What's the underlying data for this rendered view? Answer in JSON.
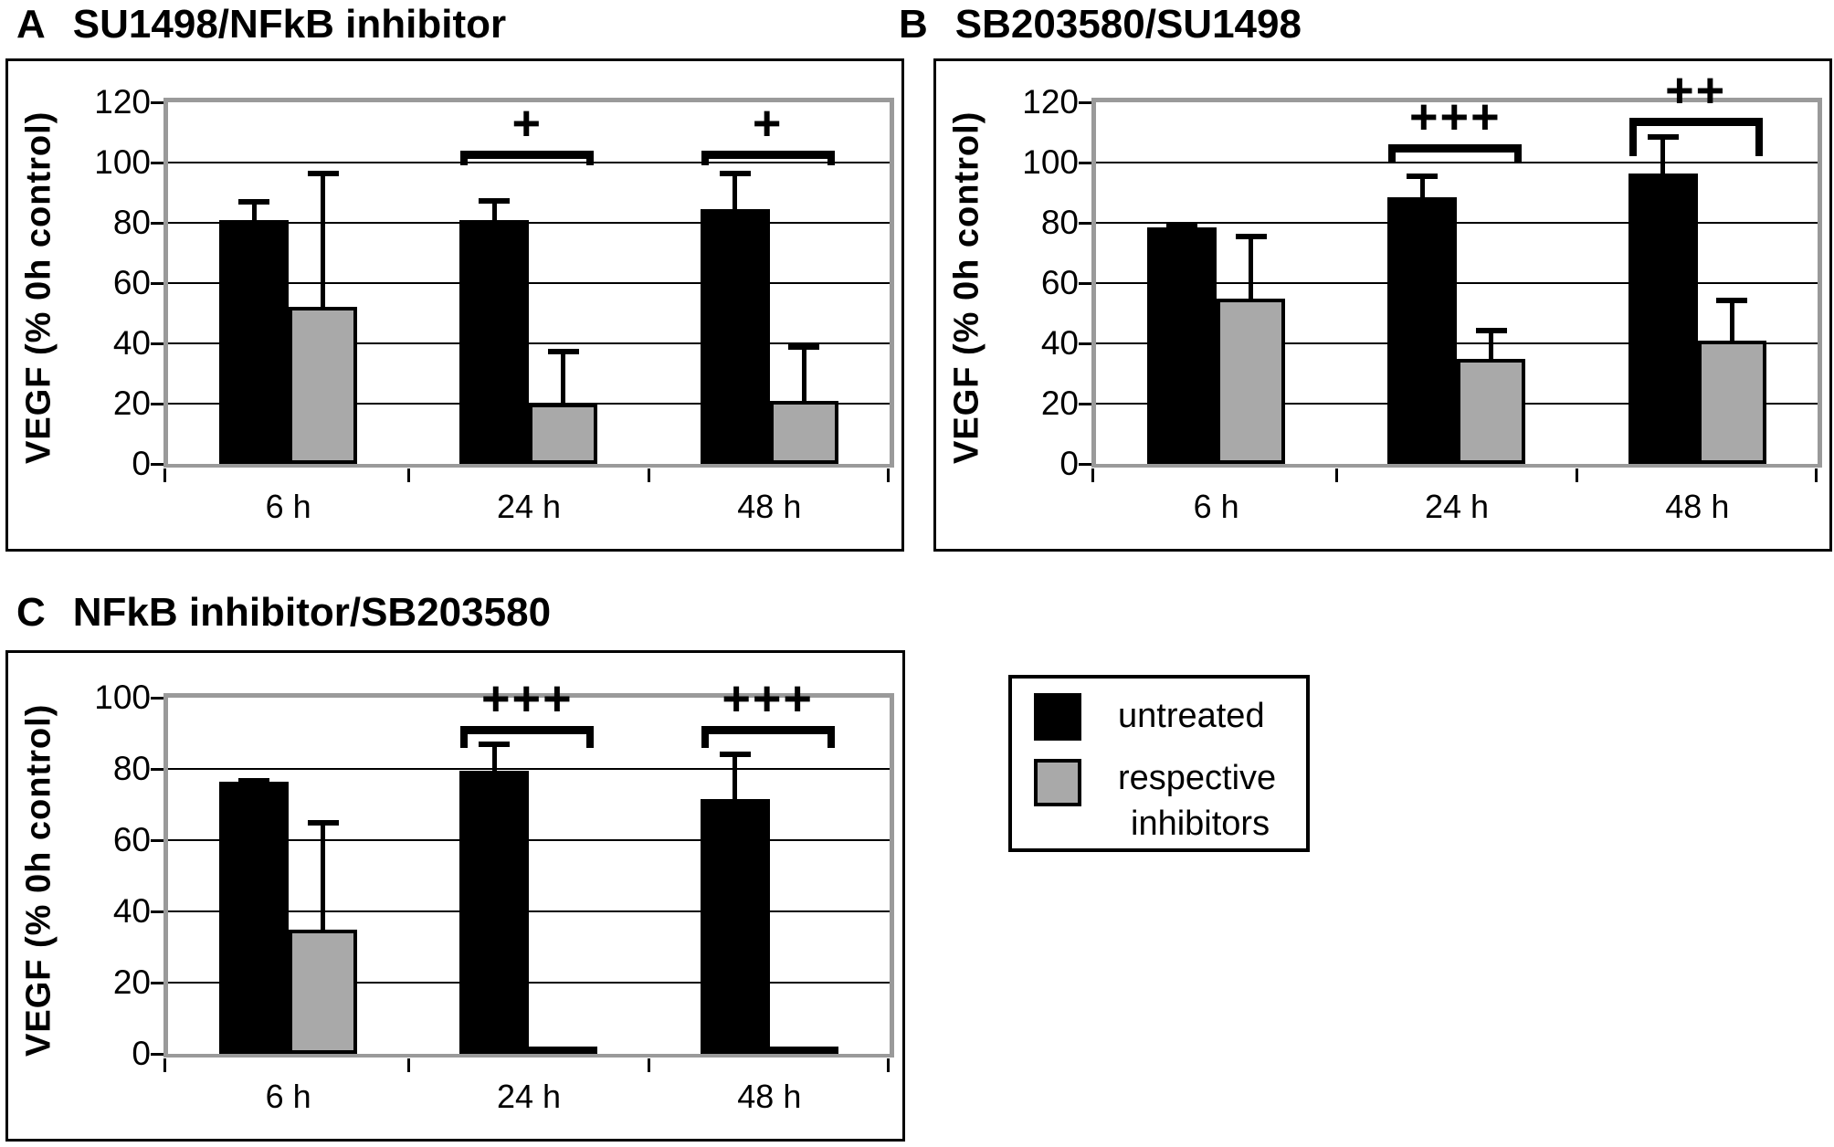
{
  "legend": {
    "items": [
      {
        "swatch": "black",
        "label": "untreated"
      },
      {
        "swatch": "gray",
        "label_line1": "respective",
        "label_line2": "inhibitors"
      }
    ]
  },
  "colors": {
    "untreated": "#000000",
    "inhibitors": "#a9a9a9",
    "plot_border": "#9a9a9a",
    "gridline": "#000000",
    "outer_box": "#000000"
  },
  "chart_data": [
    {
      "type": "bar",
      "panel_label": "A",
      "title": "SU1498/NFkB inhibitor",
      "ylabel": "VEGF (% 0h control)",
      "xlabel": "",
      "categories": [
        "6 h",
        "24 h",
        "48 h"
      ],
      "ylim": [
        0,
        120
      ],
      "yticks": [
        120,
        100,
        80,
        60,
        40,
        20,
        0
      ],
      "grid": true,
      "legend_position": "none",
      "series": [
        {
          "name": "untreated",
          "color": "#000000",
          "values": [
            81,
            81,
            84.5
          ],
          "errors_plus": [
            6.5,
            7,
            12.5
          ]
        },
        {
          "name": "respective inhibitors",
          "color": "#a9a9a9",
          "values": [
            52,
            20,
            21
          ],
          "errors_plus": [
            45,
            18,
            18.5
          ]
        }
      ],
      "significance": [
        {
          "category": "24 h",
          "group_index": 1,
          "symbol": "+",
          "bracket_y": 104,
          "hook_down": 5
        },
        {
          "category": "48 h",
          "group_index": 2,
          "symbol": "+",
          "bracket_y": 104,
          "hook_down": 5
        }
      ]
    },
    {
      "type": "bar",
      "panel_label": "B",
      "title": "SB203580/SU1498",
      "ylabel": "VEGF (% 0h control)",
      "xlabel": "",
      "categories": [
        "6 h",
        "24 h",
        "48 h"
      ],
      "ylim": [
        0,
        120
      ],
      "yticks": [
        120,
        100,
        80,
        60,
        40,
        20,
        0
      ],
      "grid": true,
      "legend_position": "none",
      "series": [
        {
          "name": "untreated",
          "color": "#000000",
          "values": [
            78.5,
            88.5,
            96.5
          ],
          "errors_plus": [
            1,
            7.5,
            12.5
          ]
        },
        {
          "name": "respective inhibitors",
          "color": "#a9a9a9",
          "values": [
            55,
            35,
            41
          ],
          "errors_plus": [
            21,
            10,
            14
          ]
        }
      ],
      "significance": [
        {
          "category": "24 h",
          "group_index": 1,
          "symbol": "+++",
          "bracket_y": 106,
          "hook_down": 6
        },
        {
          "category": "48 h",
          "group_index": 2,
          "symbol": "++",
          "bracket_y": 115,
          "hook_down": 13
        }
      ]
    },
    {
      "type": "bar",
      "panel_label": "C",
      "title": "NFkB inhibitor/SB203580",
      "ylabel": "VEGF (% 0h control)",
      "xlabel": "",
      "categories": [
        "6 h",
        "24 h",
        "48 h"
      ],
      "ylim": [
        0,
        100
      ],
      "yticks": [
        100,
        80,
        60,
        40,
        20,
        0
      ],
      "grid": true,
      "legend_position": "none",
      "series": [
        {
          "name": "untreated",
          "color": "#000000",
          "values": [
            76.5,
            79.5,
            71.5
          ],
          "errors_plus": [
            0.7,
            8,
            13
          ]
        },
        {
          "name": "respective inhibitors",
          "color": "#a9a9a9",
          "values": [
            35,
            0.5,
            0.5
          ],
          "errors_plus": [
            30.5,
            0,
            0
          ]
        }
      ],
      "significance": [
        {
          "category": "24 h",
          "group_index": 1,
          "symbol": "+++",
          "bracket_y": 92,
          "hook_down": 6
        },
        {
          "category": "48 h",
          "group_index": 2,
          "symbol": "+++",
          "bracket_y": 92,
          "hook_down": 6
        }
      ]
    }
  ]
}
